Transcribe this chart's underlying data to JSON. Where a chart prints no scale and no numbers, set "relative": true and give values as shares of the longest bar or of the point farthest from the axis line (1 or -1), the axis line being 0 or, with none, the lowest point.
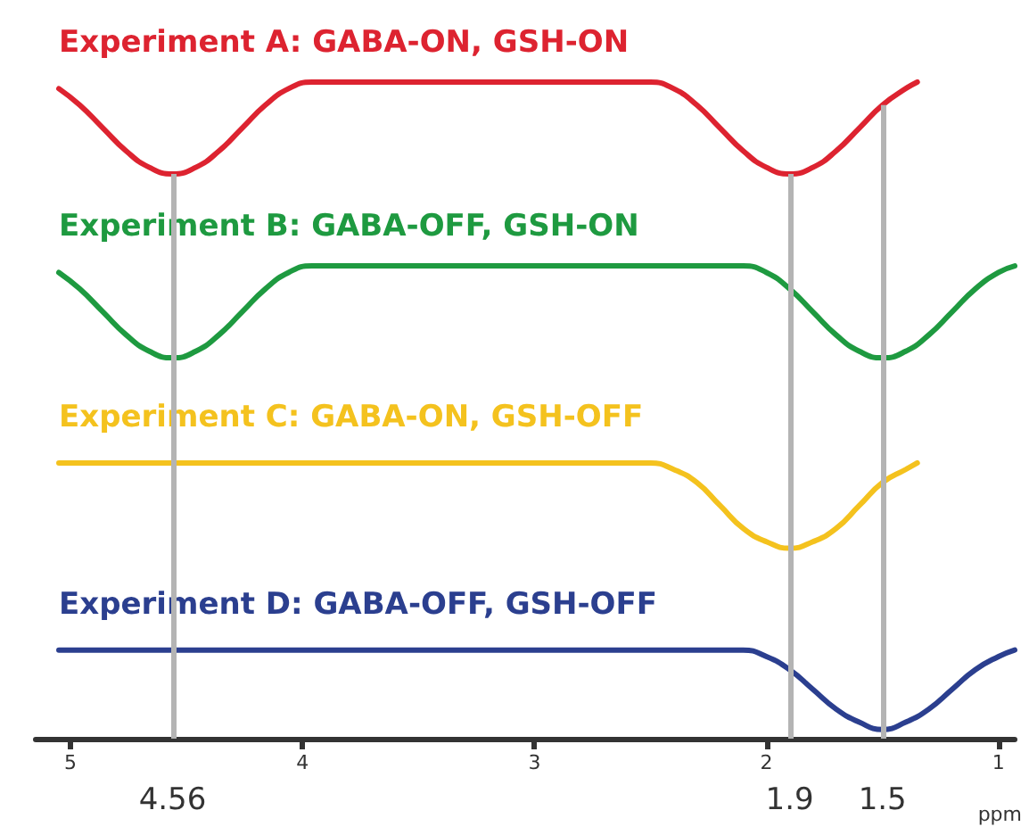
{
  "chart_data": {
    "type": "line",
    "relative": true,
    "xlabel": "ppm",
    "xlim": [
      5.15,
      0.93
    ],
    "xticks": [
      5,
      4,
      3,
      2,
      1
    ],
    "grid": false,
    "legend": false,
    "marker": "none",
    "line_style": "solid",
    "series": [
      {
        "name": "Experiment A: GABA-ON, GSH-ON",
        "color": "#dd2330",
        "x": [
          5.05,
          4.96,
          4.86,
          4.76,
          4.66,
          4.56,
          4.46,
          4.36,
          4.26,
          4.16,
          4.06,
          3.96,
          2.5,
          2.4,
          2.3,
          2.2,
          2.1,
          2.0,
          1.9,
          1.8,
          1.7,
          1.6,
          1.5,
          1.4,
          1.35
        ],
        "values": [
          0.99,
          0.965,
          0.93,
          0.895,
          0.87,
          0.86,
          0.87,
          0.895,
          0.93,
          0.965,
          0.99,
          1.0,
          1.0,
          0.99,
          0.965,
          0.93,
          0.895,
          0.87,
          0.86,
          0.87,
          0.895,
          0.93,
          0.965,
          0.99,
          1.0
        ]
      },
      {
        "name": "Experiment B: GABA-OFF, GSH-ON",
        "color": "#1e9a40",
        "x": [
          5.05,
          4.96,
          4.86,
          4.76,
          4.66,
          4.56,
          4.46,
          4.36,
          4.26,
          4.16,
          4.06,
          3.96,
          2.1,
          2.0,
          1.9,
          1.8,
          1.7,
          1.6,
          1.5,
          1.4,
          1.3,
          1.2,
          1.1,
          1.0,
          0.93
        ],
        "values": [
          0.71,
          0.685,
          0.65,
          0.615,
          0.59,
          0.58,
          0.59,
          0.615,
          0.65,
          0.685,
          0.71,
          0.72,
          0.72,
          0.71,
          0.685,
          0.65,
          0.615,
          0.59,
          0.58,
          0.59,
          0.615,
          0.65,
          0.685,
          0.71,
          0.72
        ]
      },
      {
        "name": "Experiment C: GABA-ON, GSH-OFF",
        "color": "#f4c21e",
        "x": [
          5.05,
          2.5,
          2.4,
          2.3,
          2.2,
          2.1,
          2.0,
          1.9,
          1.8,
          1.7,
          1.6,
          1.5,
          1.4,
          1.35
        ],
        "values": [
          0.42,
          0.42,
          0.41,
          0.39,
          0.355,
          0.32,
          0.3,
          0.29,
          0.3,
          0.32,
          0.355,
          0.39,
          0.41,
          0.42
        ]
      },
      {
        "name": "Experiment D: GABA-OFF, GSH-OFF",
        "color": "#2b3f8f",
        "x": [
          5.05,
          2.1,
          2.0,
          1.9,
          1.8,
          1.7,
          1.6,
          1.5,
          1.4,
          1.3,
          1.2,
          1.1,
          1.0,
          0.93
        ],
        "values": [
          0.135,
          0.135,
          0.125,
          0.105,
          0.075,
          0.045,
          0.025,
          0.014,
          0.025,
          0.045,
          0.075,
          0.105,
          0.125,
          0.135
        ]
      }
    ],
    "ref_lines": [
      {
        "axis": "x",
        "value": 4.56,
        "label": "4.56",
        "color": "#b4b4b4"
      },
      {
        "axis": "x",
        "value": 1.9,
        "label": "1.9",
        "color": "#b4b4b4"
      },
      {
        "axis": "x",
        "value": 1.5,
        "label": "1.5",
        "color": "#b4b4b4"
      }
    ]
  }
}
